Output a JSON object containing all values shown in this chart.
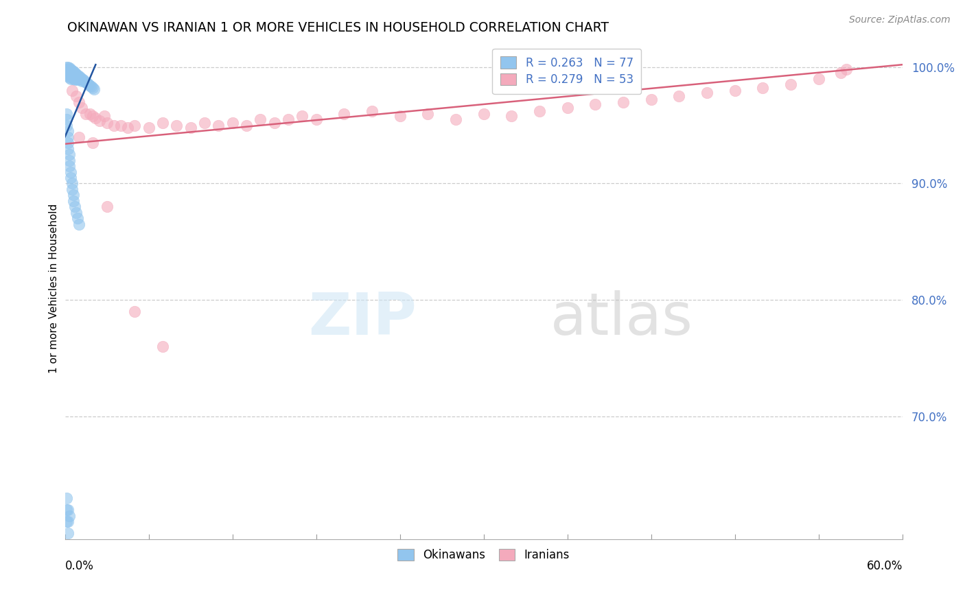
{
  "title": "OKINAWAN VS IRANIAN 1 OR MORE VEHICLES IN HOUSEHOLD CORRELATION CHART",
  "source": "Source: ZipAtlas.com",
  "ylabel": "1 or more Vehicles in Household",
  "ytick_values": [
    0.7,
    0.8,
    0.9,
    1.0
  ],
  "xmin": 0.0,
  "xmax": 0.6,
  "ymin": 0.595,
  "ymax": 1.025,
  "legend_R_blue": "R = 0.263",
  "legend_N_blue": "N = 77",
  "legend_R_pink": "R = 0.279",
  "legend_N_pink": "N = 53",
  "blue_color": "#92C5EE",
  "pink_color": "#F4AABC",
  "blue_line_color": "#2255A0",
  "pink_line_color": "#D8607A",
  "okinawan_x": [
    0.001,
    0.001,
    0.002,
    0.002,
    0.002,
    0.002,
    0.002,
    0.003,
    0.003,
    0.003,
    0.003,
    0.003,
    0.004,
    0.004,
    0.004,
    0.004,
    0.004,
    0.005,
    0.005,
    0.005,
    0.005,
    0.006,
    0.006,
    0.006,
    0.006,
    0.007,
    0.007,
    0.007,
    0.007,
    0.008,
    0.008,
    0.008,
    0.009,
    0.009,
    0.009,
    0.01,
    0.01,
    0.011,
    0.011,
    0.012,
    0.012,
    0.013,
    0.014,
    0.015,
    0.016,
    0.017,
    0.018,
    0.019,
    0.02,
    0.021,
    0.001,
    0.001,
    0.001,
    0.002,
    0.002,
    0.002,
    0.002,
    0.003,
    0.003,
    0.003,
    0.004,
    0.004,
    0.005,
    0.005,
    0.006,
    0.006,
    0.007,
    0.008,
    0.009,
    0.01,
    0.001,
    0.001,
    0.001,
    0.002,
    0.002,
    0.002,
    0.003
  ],
  "okinawan_y": [
    1.0,
    0.998,
    1.0,
    0.998,
    0.996,
    0.994,
    0.992,
    0.999,
    0.997,
    0.995,
    0.993,
    0.991,
    0.998,
    0.996,
    0.994,
    0.992,
    0.99,
    0.997,
    0.995,
    0.993,
    0.991,
    0.996,
    0.994,
    0.992,
    0.99,
    0.995,
    0.993,
    0.991,
    0.989,
    0.994,
    0.992,
    0.99,
    0.993,
    0.991,
    0.989,
    0.992,
    0.99,
    0.991,
    0.989,
    0.99,
    0.988,
    0.989,
    0.988,
    0.987,
    0.986,
    0.985,
    0.984,
    0.983,
    0.982,
    0.981,
    0.96,
    0.955,
    0.95,
    0.945,
    0.94,
    0.935,
    0.93,
    0.925,
    0.92,
    0.915,
    0.91,
    0.905,
    0.9,
    0.895,
    0.89,
    0.885,
    0.88,
    0.875,
    0.87,
    0.865,
    0.63,
    0.62,
    0.61,
    0.6,
    0.61,
    0.62,
    0.615
  ],
  "iranian_x": [
    0.005,
    0.008,
    0.01,
    0.012,
    0.015,
    0.018,
    0.02,
    0.022,
    0.025,
    0.028,
    0.03,
    0.035,
    0.04,
    0.045,
    0.05,
    0.06,
    0.07,
    0.08,
    0.09,
    0.1,
    0.11,
    0.12,
    0.13,
    0.14,
    0.15,
    0.16,
    0.17,
    0.18,
    0.2,
    0.22,
    0.24,
    0.26,
    0.28,
    0.3,
    0.32,
    0.34,
    0.36,
    0.38,
    0.4,
    0.42,
    0.44,
    0.46,
    0.48,
    0.5,
    0.52,
    0.54,
    0.556,
    0.56,
    0.01,
    0.02,
    0.03,
    0.05,
    0.07
  ],
  "iranian_y": [
    0.98,
    0.975,
    0.97,
    0.965,
    0.96,
    0.96,
    0.958,
    0.956,
    0.954,
    0.958,
    0.952,
    0.95,
    0.95,
    0.948,
    0.95,
    0.948,
    0.952,
    0.95,
    0.948,
    0.952,
    0.95,
    0.952,
    0.95,
    0.955,
    0.952,
    0.955,
    0.958,
    0.955,
    0.96,
    0.962,
    0.958,
    0.96,
    0.955,
    0.96,
    0.958,
    0.962,
    0.965,
    0.968,
    0.97,
    0.972,
    0.975,
    0.978,
    0.98,
    0.982,
    0.985,
    0.99,
    0.995,
    0.998,
    0.94,
    0.935,
    0.88,
    0.79,
    0.76
  ],
  "blue_trend_x0": 0.0,
  "blue_trend_y0": 0.94,
  "blue_trend_x1": 0.022,
  "blue_trend_y1": 1.002,
  "pink_trend_x0": 0.0,
  "pink_trend_y0": 0.934,
  "pink_trend_x1": 0.6,
  "pink_trend_y1": 1.002
}
